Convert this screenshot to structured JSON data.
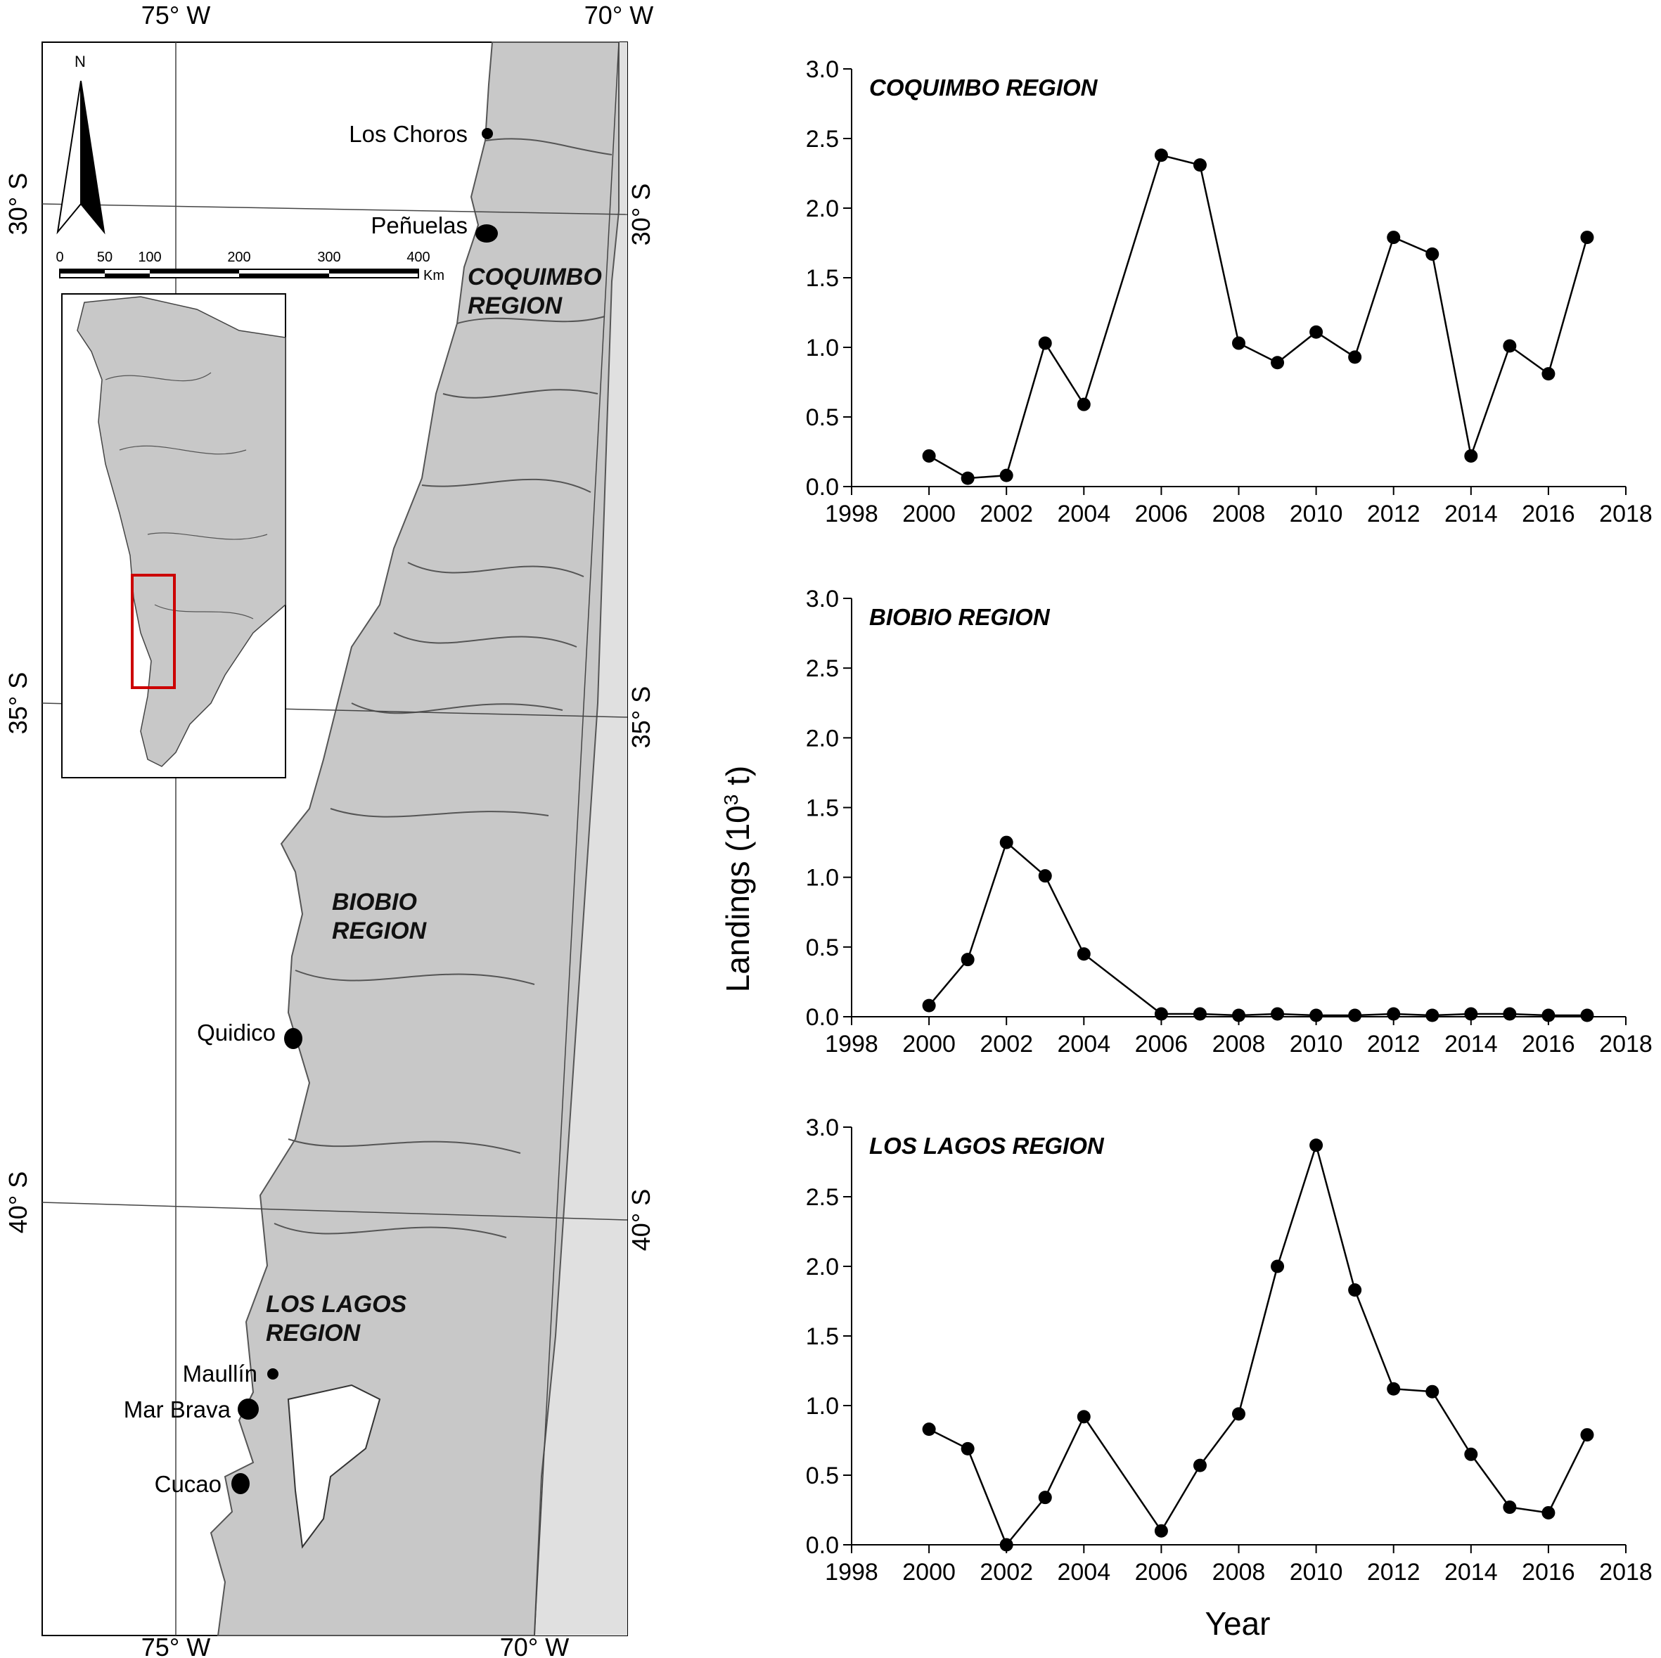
{
  "map": {
    "lon_labels_top": [
      "75° W",
      "70° W"
    ],
    "lon_labels_bottom": [
      "75° W",
      "70° W"
    ],
    "lat_labels_left": [
      "30° S",
      "35° S",
      "40° S"
    ],
    "lat_labels_right": [
      "30° S",
      "35° S",
      "40° S"
    ],
    "north_arrow_label": "N",
    "scale_bar": {
      "ticks": [
        "0",
        "50",
        "100",
        "200",
        "300",
        "400"
      ],
      "unit": "Km"
    },
    "regions": [
      {
        "line1": "COQUIMBO",
        "line2": "REGION"
      },
      {
        "line1": "BIOBIO",
        "line2": "REGION"
      },
      {
        "line1": "LOS LAGOS",
        "line2": "REGION"
      }
    ],
    "sites": [
      {
        "name": "Los Choros"
      },
      {
        "name": "Peñuelas"
      },
      {
        "name": "Quidico"
      },
      {
        "name": "Maullín"
      },
      {
        "name": "Mar Brava"
      },
      {
        "name": "Cucao"
      }
    ],
    "colors": {
      "land": "#c8c8c8",
      "land_east": "#e0e0e0",
      "inset_box": "#cc0000"
    }
  },
  "chart_data": [
    {
      "type": "line",
      "title": "COQUIMBO REGION",
      "x": [
        2000,
        2001,
        2002,
        2003,
        2004,
        2006,
        2007,
        2008,
        2009,
        2010,
        2011,
        2012,
        2013,
        2014,
        2015,
        2016,
        2017
      ],
      "values": [
        0.22,
        0.06,
        0.08,
        1.03,
        0.59,
        2.38,
        2.31,
        1.03,
        0.89,
        1.11,
        0.93,
        1.79,
        1.67,
        0.22,
        1.01,
        0.81,
        1.79
      ],
      "xlim": [
        1998,
        2018
      ],
      "ylim": [
        0,
        3
      ],
      "xticks": [
        "1998",
        "2000",
        "2002",
        "2004",
        "2006",
        "2008",
        "2010",
        "2012",
        "2014",
        "2016",
        "2018"
      ],
      "yticks": [
        "0.0",
        "0.5",
        "1.0",
        "1.5",
        "2.0",
        "2.5",
        "3.0"
      ]
    },
    {
      "type": "line",
      "title": "BIOBIO REGION",
      "x": [
        2000,
        2001,
        2002,
        2003,
        2004,
        2006,
        2007,
        2008,
        2009,
        2010,
        2011,
        2012,
        2013,
        2014,
        2015,
        2016,
        2017
      ],
      "values": [
        0.08,
        0.41,
        1.25,
        1.01,
        0.45,
        0.02,
        0.02,
        0.01,
        0.02,
        0.01,
        0.01,
        0.02,
        0.01,
        0.02,
        0.02,
        0.01,
        0.01
      ],
      "xlim": [
        1998,
        2018
      ],
      "ylim": [
        0,
        3
      ],
      "xticks": [
        "1998",
        "2000",
        "2002",
        "2004",
        "2006",
        "2008",
        "2010",
        "2012",
        "2014",
        "2016",
        "2018"
      ],
      "yticks": [
        "0.0",
        "0.5",
        "1.0",
        "1.5",
        "2.0",
        "2.5",
        "3.0"
      ]
    },
    {
      "type": "line",
      "title": "LOS LAGOS REGION",
      "x": [
        2000,
        2001,
        2002,
        2003,
        2004,
        2006,
        2007,
        2008,
        2009,
        2010,
        2011,
        2012,
        2013,
        2014,
        2015,
        2016,
        2017
      ],
      "values": [
        0.83,
        0.69,
        0.0,
        0.34,
        0.92,
        0.1,
        0.57,
        0.94,
        2.0,
        2.87,
        1.83,
        1.12,
        1.1,
        0.65,
        0.27,
        0.23,
        0.79
      ],
      "xlim": [
        1998,
        2018
      ],
      "ylim": [
        0,
        3
      ],
      "xticks": [
        "1998",
        "2000",
        "2002",
        "2004",
        "2006",
        "2008",
        "2010",
        "2012",
        "2014",
        "2016",
        "2018"
      ],
      "yticks": [
        "0.0",
        "0.5",
        "1.0",
        "1.5",
        "2.0",
        "2.5",
        "3.0"
      ]
    }
  ],
  "shared_axes": {
    "ylabel_main": "Landings (10",
    "ylabel_sup": "3",
    "ylabel_unit": " t)",
    "xlabel": "Year"
  }
}
